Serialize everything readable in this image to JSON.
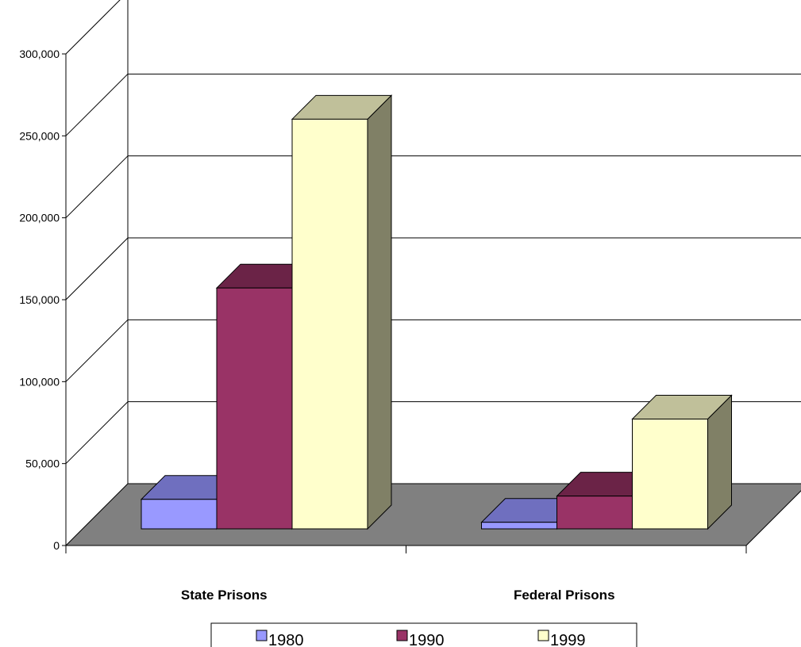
{
  "chart_data": {
    "type": "bar",
    "style": "3d-clustered-column",
    "categories": [
      "State Prisons",
      "Federal Prisons"
    ],
    "series": [
      {
        "name": "1980",
        "values": [
          18000,
          4000
        ],
        "color": "#9999ff",
        "top_color": "#6f6fbf",
        "side_color": "#5c5ca8"
      },
      {
        "name": "1990",
        "values": [
          147000,
          20000
        ],
        "color": "#993366",
        "top_color": "#6b2347",
        "side_color": "#5a1e3c"
      },
      {
        "name": "1999",
        "values": [
          250000,
          67000
        ],
        "color": "#ffffcc",
        "top_color": "#c0c09a",
        "side_color": "#808066"
      }
    ],
    "ylim": [
      0,
      300000
    ],
    "yticks": [
      0,
      50000,
      100000,
      150000,
      200000,
      250000,
      300000
    ],
    "ytick_labels": [
      "0",
      "50,000",
      "100,000",
      "150,000",
      "200,000",
      "250,000",
      "300,000"
    ],
    "xlabel": "",
    "ylabel": "",
    "title": "",
    "grid": true,
    "legend_position": "bottom",
    "floor_color": "#808080"
  }
}
